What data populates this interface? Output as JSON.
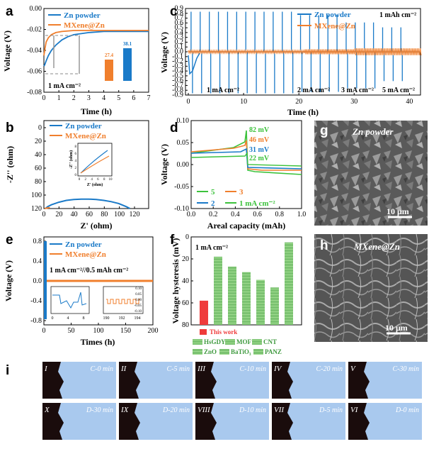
{
  "colors": {
    "blue": "#1a7ac8",
    "orange": "#f07f2d",
    "red": "#ef3b3b",
    "green": "#78c86a",
    "green_hatch": "#3f9a3f"
  },
  "panel_labels": [
    "a",
    "b",
    "c",
    "d",
    "e",
    "f",
    "g",
    "h",
    "i"
  ],
  "chart_data": [
    {
      "id": "a",
      "type": "line",
      "xlabel": "Time (h)",
      "ylabel": "Voltage (V)",
      "xlim": [
        0,
        7
      ],
      "ylim": [
        -0.08,
        0.0
      ],
      "xticks": [
        "0",
        "1",
        "2",
        "3",
        "4",
        "5",
        "6",
        "7"
      ],
      "yticks": [
        "0.00",
        "-0.02",
        "-0.04",
        "-0.06",
        "-0.08"
      ],
      "series": [
        {
          "name": "Zn powder",
          "x": [
            0,
            0.05,
            0.15,
            0.3,
            0.5,
            0.8,
            1.2,
            1.6,
            2.0,
            2.5,
            3,
            4,
            5,
            6,
            7
          ],
          "y": [
            -0.055,
            -0.054,
            -0.05,
            -0.045,
            -0.04,
            -0.035,
            -0.03,
            -0.027,
            -0.025,
            -0.024,
            -0.023,
            -0.022,
            -0.022,
            -0.022,
            -0.022
          ]
        },
        {
          "name": "MXene@Zn",
          "x": [
            0,
            0.05,
            0.15,
            0.3,
            0.5,
            0.8,
            1.2,
            2,
            3,
            4,
            5,
            6,
            7
          ],
          "y": [
            -0.045,
            -0.04,
            -0.032,
            -0.028,
            -0.025,
            -0.023,
            -0.022,
            -0.021,
            -0.021,
            -0.021,
            -0.021,
            -0.021,
            -0.021
          ]
        }
      ],
      "annotation": "1 mA cm⁻²",
      "inset_bars": [
        {
          "label": "27.4",
          "value": 27.4
        },
        {
          "label": "38.1",
          "value": 38.1
        }
      ]
    },
    {
      "id": "b",
      "type": "line",
      "xlabel": "Z' (ohm)",
      "ylabel": "-Z'' (ohm)",
      "xlim": [
        0,
        140
      ],
      "ylim": [
        0,
        140
      ],
      "xticks": [
        "0",
        "20",
        "40",
        "60",
        "80",
        "100",
        "120"
      ],
      "yticks": [
        "0",
        "20",
        "40",
        "60",
        "80",
        "100",
        "120"
      ],
      "series": [
        {
          "name": "Zn powder",
          "x": [
            2,
            5,
            10,
            20,
            30,
            40,
            50,
            60,
            70,
            80,
            90,
            100,
            110,
            115
          ],
          "y": [
            0,
            3,
            6,
            10,
            13,
            14.5,
            15,
            15,
            14.5,
            13,
            11,
            8,
            3,
            0
          ]
        },
        {
          "name": "MXene@Zn",
          "x": [
            1,
            3,
            5,
            8
          ],
          "y": [
            0,
            0.5,
            1,
            1.5
          ]
        }
      ],
      "inset": {
        "xlabel": "Z' (ohm)",
        "ylabel": "-Z'' (ohm)",
        "xticks": [
          "0",
          "2",
          "4",
          "6",
          "8",
          "10"
        ],
        "yticks": [
          "0",
          "2",
          "4",
          "6",
          "8"
        ]
      }
    },
    {
      "id": "c",
      "type": "line",
      "xlabel": "Time (h)",
      "ylabel": "Voltage (V)",
      "xlim": [
        0,
        42
      ],
      "ylim": [
        -0.95,
        0.95
      ],
      "xticks": [
        "0",
        "10",
        "20",
        "30",
        "40"
      ],
      "yticks": [
        "0.9",
        "0.8",
        "0.7",
        "0.6",
        "0.5",
        "0.4",
        "0.3",
        "0.2",
        "0.1",
        "0.0",
        "-0.1",
        "-0.2",
        "-0.3",
        "-0.4",
        "-0.5",
        "-0.6",
        "-0.7",
        "-0.8",
        "-0.9"
      ],
      "series": [
        {
          "name": "Zn powder"
        },
        {
          "name": "MXene@Zn"
        }
      ],
      "annotations": [
        "1 mAh cm⁻²",
        "1 mA cm⁻²",
        "2 mA cm⁻²",
        "3 mA cm⁻²",
        "5 mA cm⁻²"
      ]
    },
    {
      "id": "d",
      "type": "line",
      "xlabel": "Areal capacity (mAh)",
      "ylabel": "Voltage (V)",
      "xlim": [
        0,
        1.0
      ],
      "ylim": [
        -0.1,
        0.1
      ],
      "xticks": [
        "0.0",
        "0.2",
        "0.4",
        "0.6",
        "0.8",
        "1.0"
      ],
      "yticks": [
        "0.10",
        "0.05",
        "0.00",
        "-0.05",
        "-0.10"
      ],
      "annotations": [
        {
          "text": "82 mV",
          "color": "#3cc23c"
        },
        {
          "text": "46 mV",
          "color": "#f07f2d"
        },
        {
          "text": "31 mV",
          "color": "#1a7ac8"
        },
        {
          "text": "22 mV",
          "color": "#3cc23c"
        }
      ],
      "legend": [
        {
          "name": "5",
          "color": "#3cc23c"
        },
        {
          "name": "3",
          "color": "#f07f2d"
        },
        {
          "name": "2",
          "color": "#1a7ac8"
        },
        {
          "name": "1 mA cm⁻²",
          "color": "#3cc23c"
        }
      ]
    },
    {
      "id": "e",
      "type": "line",
      "xlabel": "Times (h)",
      "ylabel": "Voltage (V)",
      "xlim": [
        0,
        200
      ],
      "ylim": [
        -0.9,
        0.9
      ],
      "xticks": [
        "0",
        "50",
        "100",
        "150",
        "200"
      ],
      "yticks": [
        "0.8",
        "0.4",
        "0.0",
        "-0.4",
        "-0.8"
      ],
      "series": [
        {
          "name": "Zn powder"
        },
        {
          "name": "MXene@Zn"
        }
      ],
      "annotation": "1 mA cm⁻²//0.5 mAh cm⁻²",
      "inset1": {
        "xticks": [
          "0",
          "4",
          "8"
        ]
      },
      "inset2": {
        "xticks": [
          "190",
          "192",
          "194"
        ],
        "yticks": [
          "0.10",
          "0.05",
          "0.00",
          "-0.05",
          "-0.10"
        ]
      }
    },
    {
      "id": "f",
      "type": "bar",
      "ylabel": "Voltage hysteresis (mV)",
      "ylim": [
        0,
        80
      ],
      "yticks": [
        "0",
        "20",
        "40",
        "60",
        "80"
      ],
      "annotation": "1 mA cm⁻²",
      "values": [
        22,
        62,
        53,
        48,
        41,
        34,
        75
      ],
      "legend": [
        "This work",
        "HsGDY",
        "MOF",
        "CNT",
        "ZnO",
        "BaTiO₃",
        "PANZ"
      ]
    }
  ],
  "sem": {
    "g_label": "Zn powder",
    "h_label": "MXene@Zn",
    "scale_g": "10 μm",
    "scale_h": "10 μm"
  },
  "micro": {
    "top": [
      {
        "roman": "I",
        "cond": "C-0 min"
      },
      {
        "roman": "II",
        "cond": "C-5 min"
      },
      {
        "roman": "III",
        "cond": "C-10 min"
      },
      {
        "roman": "IV",
        "cond": "C-20 min"
      },
      {
        "roman": "V",
        "cond": "C-30 min"
      }
    ],
    "bottom": [
      {
        "roman": "X",
        "cond": "D-30 min"
      },
      {
        "roman": "IX",
        "cond": "D-20 min"
      },
      {
        "roman": "VIII",
        "cond": "D-10 min"
      },
      {
        "roman": "VII",
        "cond": "D-5 min"
      },
      {
        "roman": "VI",
        "cond": "D-0 min"
      }
    ]
  }
}
